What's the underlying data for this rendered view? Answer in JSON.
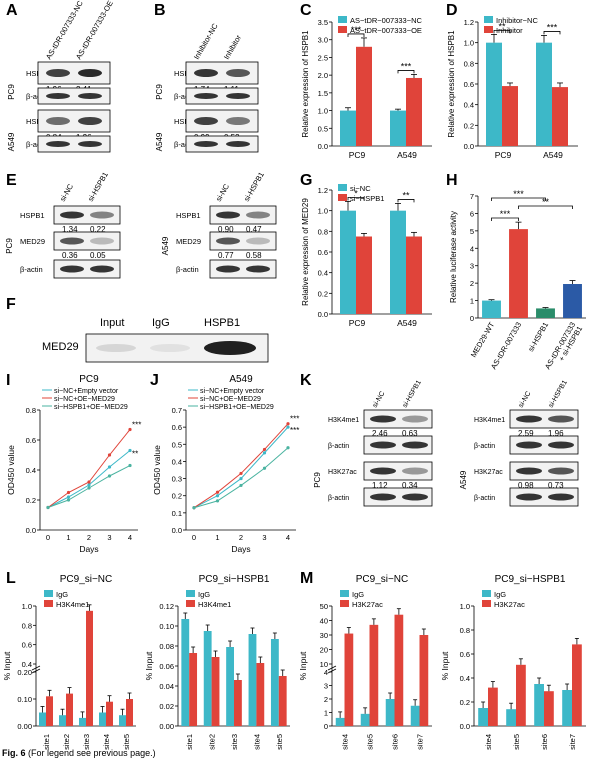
{
  "panels": {
    "A": {
      "letter": "A",
      "cols": [
        "AS-tDR-007333-NC",
        "AS-tDR-007333-OE"
      ],
      "rows": [
        {
          "cell": "PC9",
          "label": "HSPB1",
          "values": [
            "1.96",
            "2.41"
          ]
        },
        {
          "cell": "PC9",
          "label": "β-actin"
        },
        {
          "cell": "A549",
          "label": "HSPB1",
          "values": [
            "0.84",
            "1.26"
          ]
        },
        {
          "cell": "A549",
          "label": "β-actin"
        }
      ]
    },
    "B": {
      "letter": "B",
      "cols": [
        "Inhibitor-NC",
        "Inhibitor"
      ],
      "rows": [
        {
          "cell": "PC9",
          "label": "HSPB1",
          "values": [
            "1.74",
            "1.11"
          ]
        },
        {
          "cell": "PC9",
          "label": "β-actin"
        },
        {
          "cell": "A549",
          "label": "HSPB1",
          "values": [
            "0.99",
            "0.53"
          ]
        },
        {
          "cell": "A549",
          "label": "β-actin"
        }
      ]
    },
    "E": {
      "letter": "E",
      "cols": [
        "si-NC",
        "si-HSPB1"
      ],
      "pc9": [
        {
          "label": "HSPB1",
          "values": [
            "1.34",
            "0.22"
          ]
        },
        {
          "label": "MED29",
          "values": [
            "0.36",
            "0.05"
          ]
        },
        {
          "label": "β-actin"
        }
      ],
      "a549": [
        {
          "label": "HSPB1",
          "values": [
            "0.90",
            "0.47"
          ]
        },
        {
          "label": "MED29",
          "values": [
            "0.77",
            "0.58"
          ]
        },
        {
          "label": "β-actin"
        }
      ],
      "cell1": "PC9",
      "cell2": "A549"
    },
    "F": {
      "letter": "F",
      "lanes": [
        "Input",
        "IgG",
        "HSPB1"
      ],
      "row": "MED29"
    },
    "K": {
      "letter": "K",
      "cols": [
        "si-NC",
        "si-HSPB1"
      ],
      "pc9": [
        {
          "label": "H3K4me1",
          "values": [
            "2.46",
            "0.63"
          ]
        },
        {
          "label": "β-actin"
        },
        {
          "label": "H3K27ac",
          "values": [
            "1.12",
            "0.34"
          ]
        },
        {
          "label": "β-actin"
        }
      ],
      "a549": [
        {
          "label": "H3K4me1",
          "values": [
            "2.59",
            "1.96"
          ]
        },
        {
          "label": "β-actin"
        },
        {
          "label": "H3K27ac",
          "values": [
            "0.98",
            "0.73"
          ]
        },
        {
          "label": "β-actin"
        }
      ],
      "cell1": "PC9",
      "cell2": "A549"
    },
    "I_letter": "I",
    "J_letter": "J",
    "L_letter": "L",
    "M_letter": "M",
    "C_letter": "C",
    "D_letter": "D",
    "G_letter": "G",
    "H_letter": "H"
  },
  "colors": {
    "teal": "#3db8c8",
    "red": "#e0443a",
    "blue": "#2b5aa6",
    "green": "#2a8c6a"
  },
  "caption": {
    "bold": "Fig. 6",
    "text": " (For legend see previous page.)"
  },
  "chart_data": [
    {
      "id": "C",
      "type": "bar",
      "ylabel": "Relative expression of HSPB1",
      "categories": [
        "PC9",
        "A549"
      ],
      "series": [
        {
          "name": "AS−tDR−007333−NC",
          "values": [
            1.0,
            1.0
          ],
          "err": [
            0.08,
            0.04
          ]
        },
        {
          "name": "AS−tDR−007333−OE",
          "values": [
            2.8,
            1.92
          ],
          "err": [
            0.25,
            0.1
          ]
        }
      ],
      "ylim": [
        0,
        3.5
      ],
      "yticks": [
        "0.0",
        "0.5",
        "1.0",
        "1.5",
        "2.0",
        "2.5",
        "3.0",
        "3.5"
      ],
      "sig": [
        "***",
        "***"
      ]
    },
    {
      "id": "D",
      "type": "bar",
      "ylabel": "Relative expression of HSPB1",
      "categories": [
        "PC9",
        "A549"
      ],
      "series": [
        {
          "name": "Inhibitor−NC",
          "values": [
            1.0,
            1.0
          ],
          "err": [
            0.08,
            0.07
          ]
        },
        {
          "name": "Inhibitor",
          "values": [
            0.58,
            0.57
          ],
          "err": [
            0.03,
            0.04
          ]
        }
      ],
      "ylim": [
        0,
        1.2
      ],
      "yticks": [
        "0.0",
        "0.2",
        "0.4",
        "0.6",
        "0.8",
        "1.0",
        "1.2"
      ],
      "sig": [
        "**",
        "***"
      ]
    },
    {
      "id": "G",
      "type": "bar",
      "ylabel": "Relative expression of MED29",
      "categories": [
        "PC9",
        "A549"
      ],
      "series": [
        {
          "name": "si−NC",
          "values": [
            1.0,
            1.0
          ],
          "err": [
            0.09,
            0.07
          ]
        },
        {
          "name": "si−HSPB1",
          "values": [
            0.75,
            0.75
          ],
          "err": [
            0.03,
            0.04
          ]
        }
      ],
      "ylim": [
        0,
        1.2
      ],
      "yticks": [
        "0.0",
        "0.2",
        "0.4",
        "0.6",
        "0.8",
        "1.0",
        "1.2"
      ],
      "sig": [
        "*",
        "**"
      ]
    },
    {
      "id": "H",
      "type": "bar",
      "ylabel": "Relative luciferase activity",
      "categories": [
        "MED29-WT",
        "AS-tDR-007333",
        "si-HSPB1",
        "AS-tDR-007333\n+ si-HSPB1"
      ],
      "values": [
        1.0,
        5.1,
        0.55,
        1.95
      ],
      "err": [
        0.05,
        0.4,
        0.05,
        0.2
      ],
      "ylim": [
        0,
        7
      ],
      "yticks": [
        "0",
        "1",
        "2",
        "3",
        "4",
        "5",
        "6",
        "7"
      ],
      "sig": [
        "***",
        "**",
        "***"
      ]
    },
    {
      "id": "I",
      "type": "line",
      "title": "PC9",
      "xlabel": "Days",
      "ylabel": "OD450 value",
      "x": [
        0,
        1,
        2,
        3,
        4
      ],
      "series": [
        {
          "name": "si−NC+Empty vector",
          "values": [
            0.15,
            0.22,
            0.3,
            0.42,
            0.53
          ]
        },
        {
          "name": "si−NC+OE−MED29",
          "values": [
            0.15,
            0.25,
            0.32,
            0.5,
            0.67
          ]
        },
        {
          "name": "si−HSPB1+OE−MED29",
          "values": [
            0.15,
            0.2,
            0.28,
            0.36,
            0.43
          ]
        }
      ],
      "ylim": [
        0,
        0.8
      ],
      "yticks": [
        "0.0",
        "0.2",
        "0.4",
        "0.6",
        "0.8"
      ],
      "xticks": [
        "0",
        "1",
        "2",
        "3",
        "4"
      ],
      "sig": [
        "***",
        "**"
      ]
    },
    {
      "id": "J",
      "type": "line",
      "title": "A549",
      "xlabel": "Days",
      "ylabel": "OD450 value",
      "x": [
        0,
        1,
        2,
        3,
        4
      ],
      "series": [
        {
          "name": "si−NC+Empty vector",
          "values": [
            0.13,
            0.2,
            0.3,
            0.45,
            0.6
          ]
        },
        {
          "name": "si−NC+OE−MED29",
          "values": [
            0.13,
            0.22,
            0.33,
            0.47,
            0.62
          ]
        },
        {
          "name": "si−HSPB1+OE−MED29",
          "values": [
            0.13,
            0.17,
            0.26,
            0.36,
            0.48
          ]
        }
      ],
      "ylim": [
        0,
        0.7
      ],
      "yticks": [
        "0.0",
        "0.1",
        "0.2",
        "0.3",
        "0.4",
        "0.5",
        "0.6",
        "0.7"
      ],
      "xticks": [
        "0",
        "1",
        "2",
        "3",
        "4"
      ],
      "sig": [
        "***",
        "***"
      ]
    },
    {
      "id": "L1",
      "type": "bar",
      "title": "PC9_si−NC",
      "ylabel": "% Input",
      "categories": [
        "site1",
        "site2",
        "site3",
        "site4",
        "site5"
      ],
      "series": [
        {
          "name": "IgG",
          "values": [
            0.05,
            0.04,
            0.03,
            0.05,
            0.04
          ]
        },
        {
          "name": "H3K4me1",
          "values": [
            0.11,
            0.12,
            0.95,
            0.09,
            0.1
          ]
        }
      ]
    },
    {
      "id": "L2",
      "type": "bar",
      "title": "PC9_si−HSPB1",
      "ylabel": "% Input",
      "categories": [
        "site1",
        "site2",
        "site3",
        "site4",
        "site5"
      ],
      "series": [
        {
          "name": "IgG",
          "values": [
            0.107,
            0.095,
            0.079,
            0.092,
            0.087
          ]
        },
        {
          "name": "H3K4me1",
          "values": [
            0.073,
            0.069,
            0.046,
            0.063,
            0.05
          ]
        }
      ],
      "ylim": [
        0,
        0.12
      ],
      "yticks": [
        "0.00",
        "0.02",
        "0.04",
        "0.06",
        "0.08",
        "0.10",
        "0.12"
      ]
    },
    {
      "id": "M1",
      "type": "bar",
      "title": "PC9_si−NC",
      "ylabel": "% Input",
      "categories": [
        "site4",
        "site5",
        "site6",
        "site7"
      ],
      "series": [
        {
          "name": "IgG",
          "values": [
            0.6,
            0.9,
            2.0,
            1.5
          ]
        },
        {
          "name": "H3K27ac",
          "values": [
            31,
            37,
            44,
            30
          ]
        }
      ]
    },
    {
      "id": "M2",
      "type": "bar",
      "title": "PC9_si−HSPB1",
      "ylabel": "% Input",
      "categories": [
        "site4",
        "site5",
        "site6",
        "site7"
      ],
      "series": [
        {
          "name": "IgG",
          "values": [
            0.15,
            0.14,
            0.35,
            0.3
          ]
        },
        {
          "name": "H3K27ac",
          "values": [
            0.32,
            0.51,
            0.29,
            0.68
          ]
        }
      ],
      "ylim": [
        0,
        1.0
      ],
      "yticks": [
        "0.0",
        "0.2",
        "0.4",
        "0.6",
        "0.8",
        "1.0"
      ]
    }
  ]
}
